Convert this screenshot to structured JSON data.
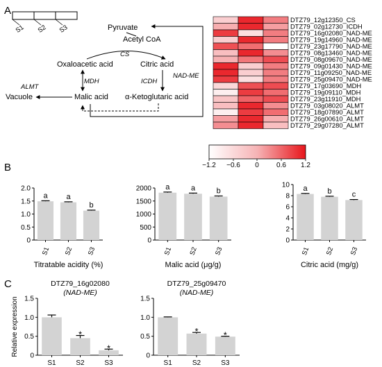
{
  "panels": {
    "A": "A",
    "B": "B",
    "C": "C"
  },
  "stage_bar": [
    "S1",
    "S2",
    "S3"
  ],
  "pathway": {
    "pyruvate": "Pyruvate",
    "acetyl_coa": "Acetyl CoA",
    "cs": "CS",
    "oxaloacetic": "Oxaloacetic acid",
    "citric": "Citric acid",
    "mdh": "MDH",
    "icdh": "ICDH",
    "nad_me": "NAD-ME",
    "malic": "Malic acid",
    "ketoglutaric": "α-Ketoglutaric acid",
    "vacuole": "Vacuole",
    "almt": "ALMT"
  },
  "colors": {
    "high": "#e8151b",
    "mid": "#ffffff",
    "low": "#e8151b",
    "bar": "#d3d3d3",
    "error": "#000000"
  },
  "chart_data": [
    {
      "type": "heatmap",
      "rows": [
        "DTZ79_12g12350_CS",
        "DTZ79_02g12730_ICDH",
        "DTZ79_16g02080_NAD-ME",
        "DTZ79_19g14960_NAD-ME",
        "DTZ79_23g17790_NAD-ME",
        "DTZ79_08g13460_NAD-ME",
        "DTZ79_08g09670_NAD-ME",
        "DTZ79_09g01430_NAD-ME",
        "DTZ79_11g09250_NAD-ME",
        "DTZ79_25g09470_NAD-ME",
        "DTZ79_17g03690_MDH",
        "DTZ79_19g09110_MDH",
        "DTZ79_23g11910_MDH",
        "DTZ79_03g08020_ALMT",
        "DTZ79_18g07890_ALMT",
        "DTZ79_26g00610_ALMT",
        "DTZ79_29g07280_ALMT"
      ],
      "columns": [
        "S1",
        "S2",
        "S3"
      ],
      "values": [
        [
          -0.3,
          1.1,
          -0.8
        ],
        [
          -0.5,
          1.1,
          -0.6
        ],
        [
          1.0,
          -0.2,
          -0.8
        ],
        [
          -0.3,
          1.1,
          -0.8
        ],
        [
          0.9,
          -0.9,
          0.0
        ],
        [
          -0.4,
          1.1,
          -0.7
        ],
        [
          0.4,
          0.7,
          -1.1
        ],
        [
          1.1,
          -0.3,
          -0.8
        ],
        [
          1.1,
          -0.3,
          -0.8
        ],
        [
          1.0,
          -0.2,
          -0.8
        ],
        [
          0.2,
          0.9,
          -1.1
        ],
        [
          -0.1,
          1.0,
          -0.9
        ],
        [
          0.3,
          0.8,
          -1.1
        ],
        [
          -0.4,
          1.1,
          -0.7
        ],
        [
          -0.1,
          1.0,
          -0.9
        ],
        [
          -0.6,
          1.1,
          -0.5
        ],
        [
          -0.7,
          1.1,
          -0.4
        ]
      ],
      "colorbar": {
        "ticks": [
          "−1.2",
          "−0.6",
          "0",
          "0.6",
          "1.2"
        ],
        "range": [
          -1.2,
          1.2
        ]
      }
    },
    {
      "type": "bar",
      "categories": [
        "S1",
        "S2",
        "S3"
      ],
      "values": [
        1.49,
        1.45,
        1.13
      ],
      "errors": [
        0.02,
        0.02,
        0.02
      ],
      "letters": [
        "a",
        "a",
        "b"
      ],
      "xlabel": "Titratable acidity (%)",
      "ylim": [
        0,
        2.0
      ],
      "yticks": [
        0,
        0.5,
        1.0,
        1.5,
        2.0
      ],
      "ytick_labels": [
        "0",
        "0.5",
        "1.0",
        "1.5",
        "2.0"
      ]
    },
    {
      "type": "bar",
      "categories": [
        "S1",
        "S2",
        "S3"
      ],
      "values": [
        1820,
        1780,
        1670
      ],
      "errors": [
        25,
        25,
        25
      ],
      "letters": [
        "a",
        "a",
        "b"
      ],
      "xlabel": "Malic acid (μg/g)",
      "ylim": [
        0,
        2000
      ],
      "yticks": [
        0,
        500,
        1000,
        1500,
        2000
      ],
      "ytick_labels": [
        "0",
        "500",
        "1000",
        "1500",
        "2000"
      ]
    },
    {
      "type": "bar",
      "categories": [
        "S1",
        "S2",
        "S3"
      ],
      "values": [
        8.3,
        7.8,
        7.2
      ],
      "errors": [
        0.1,
        0.1,
        0.1
      ],
      "letters": [
        "a",
        "b",
        "c"
      ],
      "xlabel": "Citric acid (mg/g)",
      "ylim": [
        0,
        10
      ],
      "yticks": [
        0,
        2,
        4,
        6,
        8,
        10
      ],
      "ytick_labels": [
        "0",
        "2",
        "4",
        "6",
        "8",
        "10"
      ]
    },
    {
      "type": "bar",
      "title": "DTZ79_16g02080",
      "subtitle": "(NAD-ME)",
      "ylabel": "Relative expression",
      "categories": [
        "S1",
        "S2",
        "S3"
      ],
      "values": [
        1.0,
        0.45,
        0.13
      ],
      "errors": [
        0.06,
        0.07,
        0.03
      ],
      "marks": [
        "",
        "*",
        "*"
      ],
      "ylim": [
        0,
        1.5
      ],
      "yticks": [
        0,
        0.5,
        1.0,
        1.5
      ],
      "ytick_labels": [
        "0",
        "0.5",
        "1.0",
        "1.5"
      ]
    },
    {
      "type": "bar",
      "title": "DTZ79_25g09470",
      "subtitle": "(NAD-ME)",
      "categories": [
        "S1",
        "S2",
        "S3"
      ],
      "values": [
        1.0,
        0.57,
        0.49
      ],
      "errors": [
        0.01,
        0.03,
        0.01
      ],
      "marks": [
        "",
        "*",
        "*"
      ],
      "ylim": [
        0,
        1.5
      ],
      "yticks": [
        0,
        0.5,
        1.0,
        1.5
      ],
      "ytick_labels": [
        "0",
        "0.5",
        "1.0",
        "1.5"
      ]
    }
  ]
}
